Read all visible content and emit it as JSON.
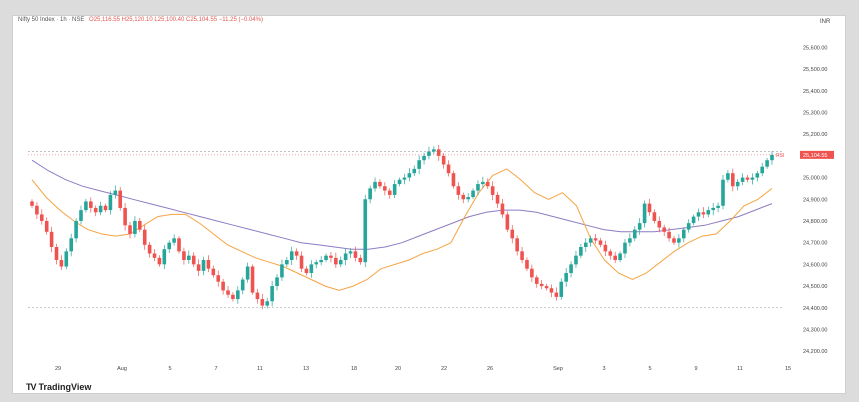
{
  "legend": {
    "symbol": "Nifty 50 Index · 1h · NSE",
    "ohlc": "O25,116.55 H25,120.10 L25,100.40 C25,104.55 −11.25 (−0.04%)"
  },
  "currency": "INR",
  "branding": {
    "logo_mark": "TV",
    "name": "TradingView"
  },
  "colors": {
    "up": "#26a69a",
    "down": "#ef5350",
    "ma_fast": "#f5a442",
    "ma_slow": "#8e7cc3",
    "price_line": "#ef5350"
  },
  "chart_data": {
    "type": "candlestick",
    "y_axis": {
      "ticks": [
        "24,200.00",
        "24,300.00",
        "24,400.00",
        "24,500.00",
        "24,600.00",
        "24,700.00",
        "24,800.00",
        "24,900.00",
        "25,000.00",
        "25,100.00",
        "25,200.00",
        "25,300.00",
        "25,400.00",
        "25,500.00",
        "25,600.00"
      ],
      "ylim": [
        24150,
        25680
      ]
    },
    "x_axis": {
      "ticks": [
        "29",
        "Aug",
        "5",
        "7",
        "11",
        "13",
        "18",
        "20",
        "22",
        "26",
        "Sep",
        "3",
        "5",
        "9",
        "11",
        "15"
      ]
    },
    "horizontal_levels": [
      25120,
      24400
    ],
    "current_price": {
      "value": 25104.55,
      "label": "25,104.55",
      "tag": "RSI"
    },
    "series": [
      {
        "kind": "candles",
        "close": [
          24870,
          24830,
          24800,
          24750,
          24680,
          24620,
          24590,
          24660,
          24720,
          24800,
          24850,
          24890,
          24860,
          24840,
          24870,
          24850,
          24920,
          24940,
          24860,
          24780,
          24740,
          24800,
          24760,
          24690,
          24650,
          24630,
          24600,
          24670,
          24700,
          24720,
          24660,
          24620,
          24640,
          24600,
          24570,
          24620,
          24580,
          24550,
          24520,
          24480,
          24460,
          24440,
          24480,
          24530,
          24590,
          24470,
          24440,
          24410,
          24430,
          24500,
          24540,
          24600,
          24620,
          24660,
          24640,
          24580,
          24560,
          24600,
          24610,
          24620,
          24640,
          24630,
          24600,
          24620,
          24650,
          24660,
          24630,
          24610,
          24900,
          24950,
          24980,
          24960,
          24940,
          24920,
          24970,
          24990,
          25000,
          25020,
          25040,
          25080,
          25100,
          25120,
          25130,
          25100,
          25060,
          25020,
          24960,
          24920,
          24900,
          24910,
          24940,
          24970,
          24980,
          24960,
          24920,
          24880,
          24830,
          24760,
          24720,
          24660,
          24620,
          24580,
          24540,
          24510,
          24500,
          24490,
          24470,
          24450,
          24520,
          24560,
          24600,
          24640,
          24680,
          24700,
          24720,
          24710,
          24690,
          24660,
          24640,
          24620,
          24650,
          24700,
          24720,
          24760,
          24790,
          24880,
          24840,
          24800,
          24770,
          24750,
          24720,
          24700,
          24720,
          24760,
          24790,
          24820,
          24840,
          24830,
          24850,
          24860,
          24870,
          24990,
          25020,
          24960,
          24980,
          25000,
          24990,
          25000,
          25020,
          25050,
          25080,
          25104.55
        ]
      },
      {
        "kind": "line",
        "name": "",
        "values": [
          24990,
          24910,
          24850,
          24800,
          24760,
          24740,
          24730,
          24740,
          24780,
          24820,
          24830,
          24830,
          24790,
          24740,
          24690,
          24660,
          24630,
          24610,
          24590,
          24560,
          24530,
          24500,
          24480,
          24500,
          24530,
          24580,
          24600,
          24620,
          24650,
          24670,
          24700,
          24820,
          24930,
          25010,
          25040,
          24990,
          24930,
          24900,
          24930,
          24870,
          24720,
          24620,
          24560,
          24530,
          24560,
          24610,
          24660,
          24700,
          24730,
          24740,
          24800,
          24870,
          24900,
          24950
        ]
      },
      {
        "kind": "line",
        "name": "",
        "values": [
          25080,
          25030,
          24990,
          24960,
          24940,
          24920,
          24900,
          24880,
          24860,
          24840,
          24820,
          24800,
          24780,
          24760,
          24740,
          24720,
          24700,
          24690,
          24680,
          24670,
          24670,
          24680,
          24700,
          24730,
          24760,
          24790,
          24820,
          24840,
          24850,
          24850,
          24840,
          24820,
          24800,
          24780,
          24760,
          24750,
          24750,
          24750,
          24760,
          24770,
          24780,
          24800,
          24820,
          24850,
          24880
        ]
      }
    ]
  }
}
